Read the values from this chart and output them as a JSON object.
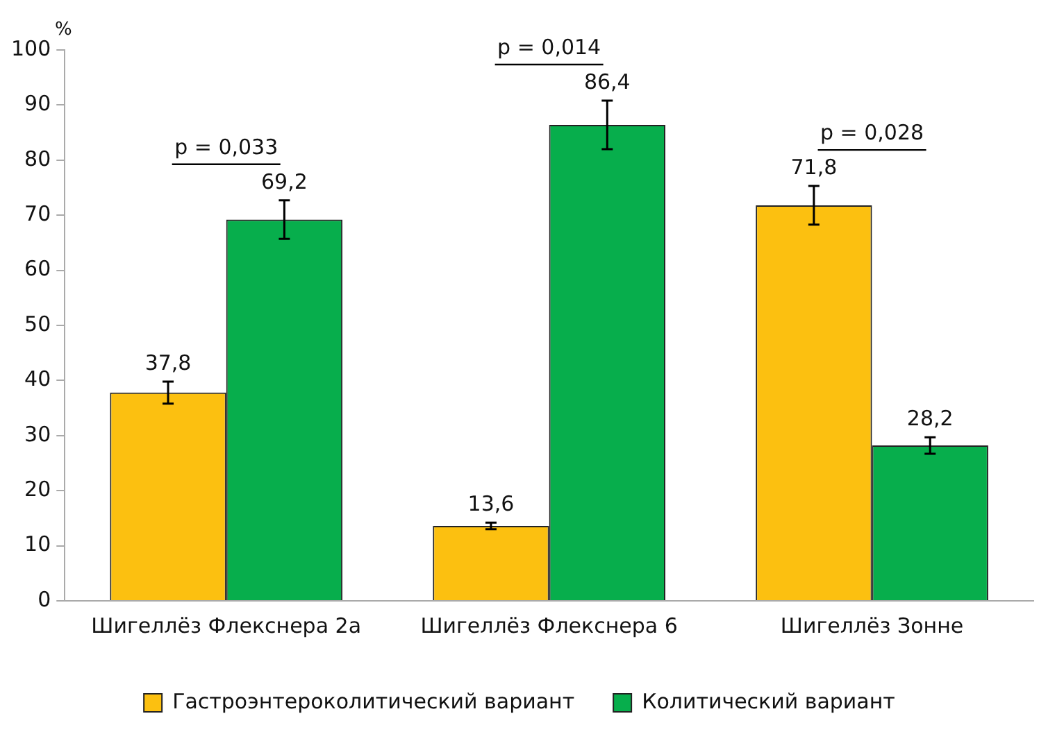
{
  "chart_data": {
    "type": "bar",
    "ylabel": "%",
    "categories": [
      "Шигеллёз Флекснера 2а",
      "Шигеллёз Флекснера 6",
      "Шигеллёз Зонне"
    ],
    "series": [
      {
        "name": "Гастроэнтероколитический вариант",
        "color": "#fcc010",
        "values": [
          37.8,
          13.6,
          71.8
        ],
        "errors": [
          2,
          0.6,
          3.5
        ],
        "value_labels": [
          "37,8",
          "13,6",
          "71,8"
        ]
      },
      {
        "name": "Колитический вариант",
        "color": "#07ae4c",
        "values": [
          69.2,
          86.4,
          28.2
        ],
        "errors": [
          3.5,
          4.4,
          1.5
        ],
        "value_labels": [
          "69,2",
          "86,4",
          "28,2"
        ]
      }
    ],
    "ylim": [
      0,
      100
    ],
    "yticks": [
      0,
      10,
      20,
      30,
      40,
      50,
      60,
      70,
      80,
      90,
      100
    ],
    "grid": false,
    "legend": "bottom",
    "annotations": [
      "p = 0,033",
      "p = 0,014",
      "p = 0,028"
    ]
  }
}
